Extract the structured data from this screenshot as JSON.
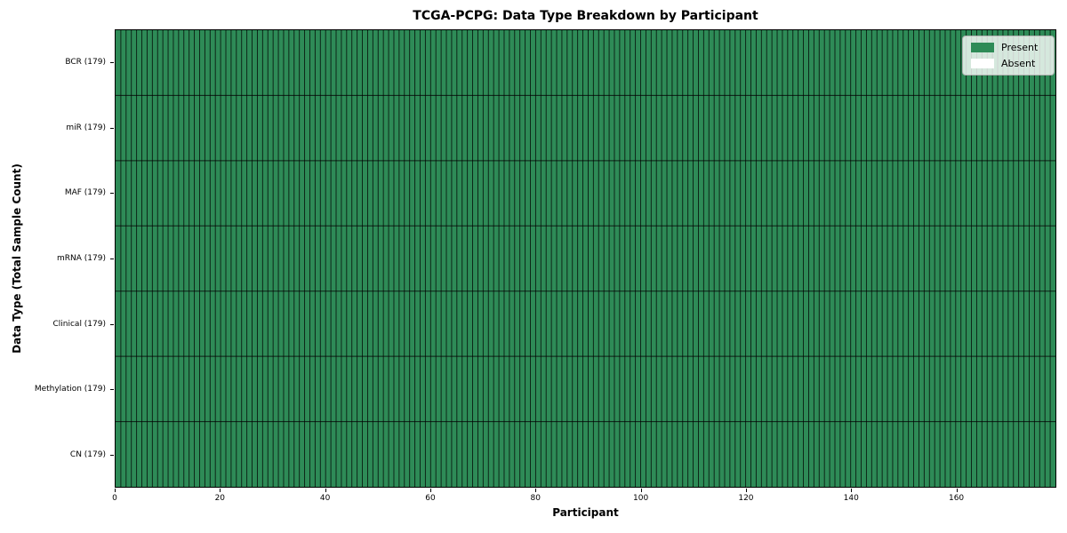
{
  "chart_data": {
    "type": "heatmap",
    "title": "TCGA-PCPG: Data Type Breakdown by Participant",
    "xlabel": "Participant",
    "ylabel": "Data Type (Total Sample Count)",
    "n_participants": 179,
    "xlim": [
      0,
      179
    ],
    "x_ticks": [
      0,
      20,
      40,
      60,
      80,
      100,
      120,
      140,
      160
    ],
    "rows": [
      {
        "name": "BCR",
        "label": "BCR (179)",
        "total_samples": 179,
        "present_count": 179
      },
      {
        "name": "miR",
        "label": "miR (179)",
        "total_samples": 179,
        "present_count": 179
      },
      {
        "name": "MAF",
        "label": "MAF (179)",
        "total_samples": 179,
        "present_count": 179
      },
      {
        "name": "mRNA",
        "label": "mRNA (179)",
        "total_samples": 179,
        "present_count": 179
      },
      {
        "name": "Clinical",
        "label": "Clinical (179)",
        "total_samples": 179,
        "present_count": 179
      },
      {
        "name": "Methylation",
        "label": "Methylation (179)",
        "total_samples": 179,
        "present_count": 179
      },
      {
        "name": "CN",
        "label": "CN (179)",
        "total_samples": 179,
        "present_count": 179
      }
    ],
    "legend": [
      {
        "label": "Present",
        "color": "#2e8b57"
      },
      {
        "label": "Absent",
        "color": "#ffffff"
      }
    ],
    "legend_position": "upper right",
    "colors": {
      "present": "#2e8b57",
      "absent": "#ffffff",
      "cell_edge": "rgba(0,0,0,0.8)",
      "spine": "#000000"
    },
    "grid": "cell-edges"
  }
}
